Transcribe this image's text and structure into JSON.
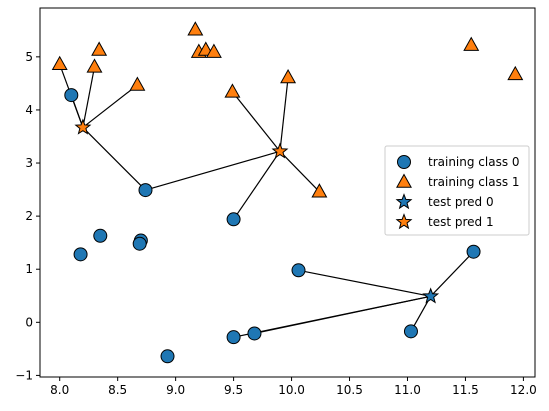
{
  "chart_data": {
    "type": "scatter",
    "xlim": [
      7.83,
      12.1
    ],
    "ylim": [
      -1.03,
      5.92
    ],
    "x_ticks": [
      8.0,
      8.5,
      9.0,
      9.5,
      10.0,
      10.5,
      11.0,
      11.5,
      12.0
    ],
    "x_tick_labels": [
      "8.0",
      "8.5",
      "9.0",
      "9.5",
      "10.0",
      "10.5",
      "11.0",
      "11.5",
      "12.0"
    ],
    "y_ticks": [
      -1,
      0,
      1,
      2,
      3,
      4,
      5
    ],
    "y_tick_labels": [
      "−1",
      "0",
      "1",
      "2",
      "3",
      "4",
      "5"
    ],
    "grid": false,
    "legend_position": "center-right",
    "colors": {
      "class0": "#1f77b4",
      "class1": "#ff7f0e",
      "edge": "#000000",
      "line": "#000000"
    },
    "legend": [
      {
        "label": "training class 0",
        "marker": "circle",
        "color": "#1f77b4"
      },
      {
        "label": "training class 1",
        "marker": "triangle",
        "color": "#ff7f0e"
      },
      {
        "label": "test pred 0",
        "marker": "star",
        "color": "#1f77b4"
      },
      {
        "label": "test pred 1",
        "marker": "star",
        "color": "#ff7f0e"
      }
    ],
    "training_class_0": [
      [
        8.1,
        4.28
      ],
      [
        8.74,
        2.49
      ],
      [
        9.5,
        1.94
      ],
      [
        8.35,
        1.63
      ],
      [
        8.7,
        1.54
      ],
      [
        8.69,
        1.48
      ],
      [
        8.18,
        1.28
      ],
      [
        10.06,
        0.98
      ],
      [
        11.57,
        1.33
      ],
      [
        11.03,
        -0.17
      ],
      [
        9.68,
        -0.21
      ],
      [
        9.5,
        -0.28
      ],
      [
        8.93,
        -0.64
      ]
    ],
    "training_class_1": [
      [
        8.0,
        4.86
      ],
      [
        8.34,
        5.13
      ],
      [
        8.3,
        4.81
      ],
      [
        8.67,
        4.47
      ],
      [
        9.17,
        5.51
      ],
      [
        9.2,
        5.09
      ],
      [
        9.26,
        5.13
      ],
      [
        9.33,
        5.09
      ],
      [
        9.49,
        4.34
      ],
      [
        9.97,
        4.61
      ],
      [
        10.24,
        2.46
      ],
      [
        11.55,
        5.22
      ],
      [
        11.93,
        4.67
      ]
    ],
    "test_pred_0": [
      [
        11.2,
        0.49
      ]
    ],
    "test_pred_1": [
      [
        8.2,
        3.67
      ],
      [
        9.9,
        3.22
      ]
    ],
    "neighbor_links": [
      {
        "from": [
          8.2,
          3.67
        ],
        "to": [
          [
            8.1,
            4.28
          ],
          [
            8.0,
            4.86
          ],
          [
            8.3,
            4.81
          ],
          [
            8.67,
            4.47
          ],
          [
            8.74,
            2.49
          ]
        ]
      },
      {
        "from": [
          9.9,
          3.22
        ],
        "to": [
          [
            9.49,
            4.34
          ],
          [
            9.97,
            4.61
          ],
          [
            10.24,
            2.46
          ],
          [
            9.5,
            1.94
          ],
          [
            8.74,
            2.49
          ]
        ]
      },
      {
        "from": [
          11.2,
          0.49
        ],
        "to": [
          [
            10.06,
            0.98
          ],
          [
            11.57,
            1.33
          ],
          [
            11.03,
            -0.17
          ],
          [
            9.68,
            -0.21
          ],
          [
            9.5,
            -0.28
          ]
        ]
      }
    ]
  }
}
